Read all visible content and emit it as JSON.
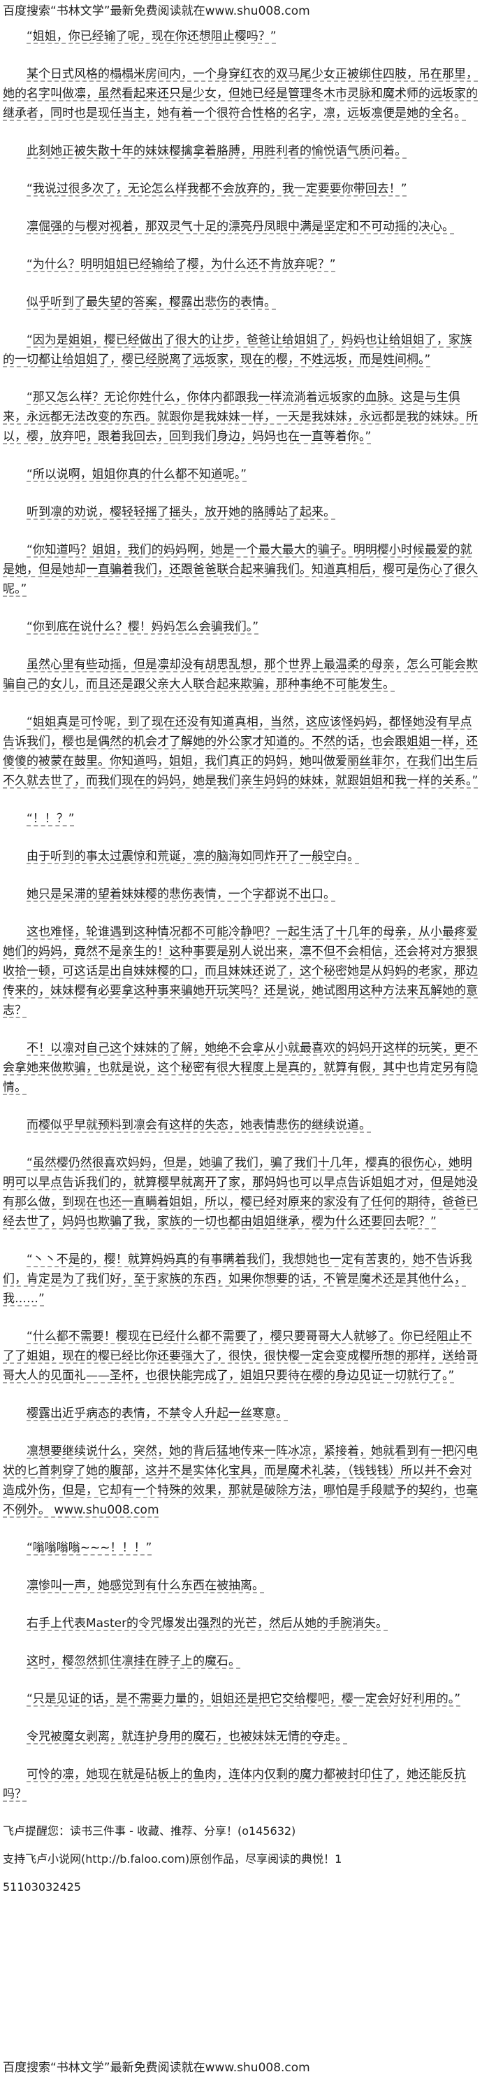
{
  "header": "百度搜索“书林文学”最新免费阅读就在www.shu008.com",
  "paragraphs": [
    "“姐姐，你已经输了呢，现在你还想阻止樱吗？”",
    "某个日式风格的榻榻米房间内，一个身穿红衣的双马尾少女正被绑住四肢，吊在那里，她的名字叫做凛，虽然看起来还只是少女，但她已经是管理冬木市灵脉和魔术师的远坂家的继承者，同时也是现任当主，她有着一个很符合性格的名字，凛，远坂凛便是她的全名。",
    "此刻她正被失散十年的妹妹樱擒拿着胳膊，用胜利者的愉悦语气质问着。",
    "“我说过很多次了，无论怎么样我都不会放弃的，我一定要要你带回去！”",
    "凛倔强的与樱对视着，那双灵气十足的漂亮丹凤眼中满是坚定和不可动摇的决心。",
    "“为什么？明明姐姐已经输给了樱，为什么还不肯放弃呢？”",
    "似乎听到了最失望的答案，樱露出悲伤的表情。",
    "“因为是姐姐，樱已经做出了很大的让步，爸爸让给姐姐了，妈妈也让给姐姐了，家族的一切都让给姐姐了，樱已经脱离了远坂家，现在的樱，不姓远坂，而是姓间桐。”",
    "“那又怎么样？无论你姓什么，你体内都跟我一样流淌着远坂家的血脉。这是与生俱来，永远都无法改变的东西。就跟你是我妹妹一样，一天是我妹妹，永远都是我的妹妹。所以，樱，放弃吧，跟着我回去，回到我们身边，妈妈也在一直等着你。”",
    "“所以说啊，姐姐你真的什么都不知道呢。”",
    "听到凛的劝说，樱轻轻摇了摇头，放开她的胳膊站了起来。",
    "“你知道吗？姐姐，我们的妈妈啊，她是一个最大最大的骗子。明明樱小时候最爱的就是她，但是她却一直骗着我们，还跟爸爸联合起来骗我们。知道真相后，樱可是伤心了很久呢。”",
    "“你到底在说什么？樱！妈妈怎么会骗我们。”",
    "虽然心里有些动摇，但是凛却没有胡思乱想，那个世界上最温柔的母亲，怎么可能会欺骗自己的女儿，而且还是跟父亲大人联合起来欺骗，那种事绝不可能发生。",
    "“姐姐真是可怜呢，到了现在还没有知道真相，当然，这应该怪妈妈，都怪她没有早点告诉我们，樱也是偶然的机会才了解她的外公家才知道的。不然的话，也会跟姐姐一样，还傻傻的被蒙在鼓里。你知道吗，姐姐，我们真正的妈妈，她叫做爱丽丝菲尔，在我们出生后不久就去世了，而我们现在的妈妈，她是我们亲生妈妈的妹妹，就跟姐姐和我一样的关系。”",
    "“！！？”",
    "由于听到的事太过震惊和荒诞，凛的脑海如同炸开了一般空白。",
    "她只是呆滞的望着妹妹樱的悲伤表情，一个字都说不出口。",
    "这也难怪，轮谁遇到这种情况都不可能冷静吧？一起生活了十几年的母亲，从小最疼爱她们的妈妈，竟然不是亲生的！这种事要是别人说出来，凛不但不会相信，还会将对方狠狠收拾一顿，可这话是出自妹妹樱的口，而且妹妹还说了，这个秘密她是从妈妈的老家，那边传来的，妹妹樱有必要拿这种事来骗她开玩笑吗？还是说，她试图用这种方法来瓦解她的意志？",
    "不！以凛对自己这个妹妹的了解，她绝不会拿从小就最喜欢的妈妈开这样的玩笑，更不会拿她来做欺骗，也就是说，这个秘密有很大程度上是真的，就算有假，其中也肯定另有隐情。",
    "而樱似乎早就预料到凛会有这样的失态，她表情悲伤的继续说道。",
    "“虽然樱仍然很喜欢妈妈，但是，她骗了我们，骗了我们十几年，樱真的很伤心，她明明可以早点告诉我们的，就算樱早就离开了家，那妈妈也可以早点告诉姐姐才对，但是她没有那么做，到现在也还一直瞒着姐姐，所以，樱已经对原来的家没有了任何的期待，爸爸已经去世了，妈妈也欺骗了我，家族的一切也都由姐姐继承，樱为什么还要回去呢？”",
    "“丶丶不是的，樱！就算妈妈真的有事瞒着我们，我想她也一定有苦衷的，她不告诉我们，肯定是为了我们好，至于家族的东西，如果你想要的话，不管是魔术还是其他什么，我……”",
    "“什么都不需要！樱现在已经什么都不需要了，樱只要哥哥大人就够了。你已经阻止不了了姐姐，现在的樱已经比你还要强大了，很快，很快樱一定会变成樱所想的那样，送给哥哥大人的见面礼——圣杯，也很快能完成了，姐姐只要待在樱的身边见证一切就行了。”",
    "樱露出近乎病态的表情，不禁令人升起一丝寒意。",
    "凛想要继续说什么，突然，她的背后猛地传来一阵冰凉，紧接着，她就看到有一把闪电状的匕首刺穿了她的腹部，这并不是实体化宝具，而是魔术礼装，（钱钱钱）所以并不会对造成外伤，但是，它却有一个特殊的效果，那就是破除方法，哪怕是手段赋予的契约，也毫不例外。 www.shu008.com",
    "“嗡嗡嗡嗡~~~！！！”",
    "凛惨叫一声，她感觉到有什么东西在被抽离。",
    "右手上代表Master的令咒爆发出强烈的光芒，然后从她的手腕消失。",
    "这时，樱忽然抓住凛挂在脖子上的魔石。",
    "“只是见证的话，是不需要力量的，姐姐还是把它交给樱吧，樱一定会好好利用的。”",
    "令咒被魔女剥离，就连护身用的魔石，也被妹妹无情的夺走。",
    "可怜的凛，她现在就是砧板上的鱼肉，连体内仅剩的魔力都被封印住了，她还能反抗吗？"
  ],
  "reminder": "飞卢提醒您：读书三件事 - 收藏、推荐、分享！(o145632)",
  "support": "支持飞卢小说网(http://b.faloo.com)原创作品，尽享阅读的典悦！1",
  "id_line": "51103032425",
  "footer": "百度搜索“书林文学”最新免费阅读就在www.shu008.com"
}
